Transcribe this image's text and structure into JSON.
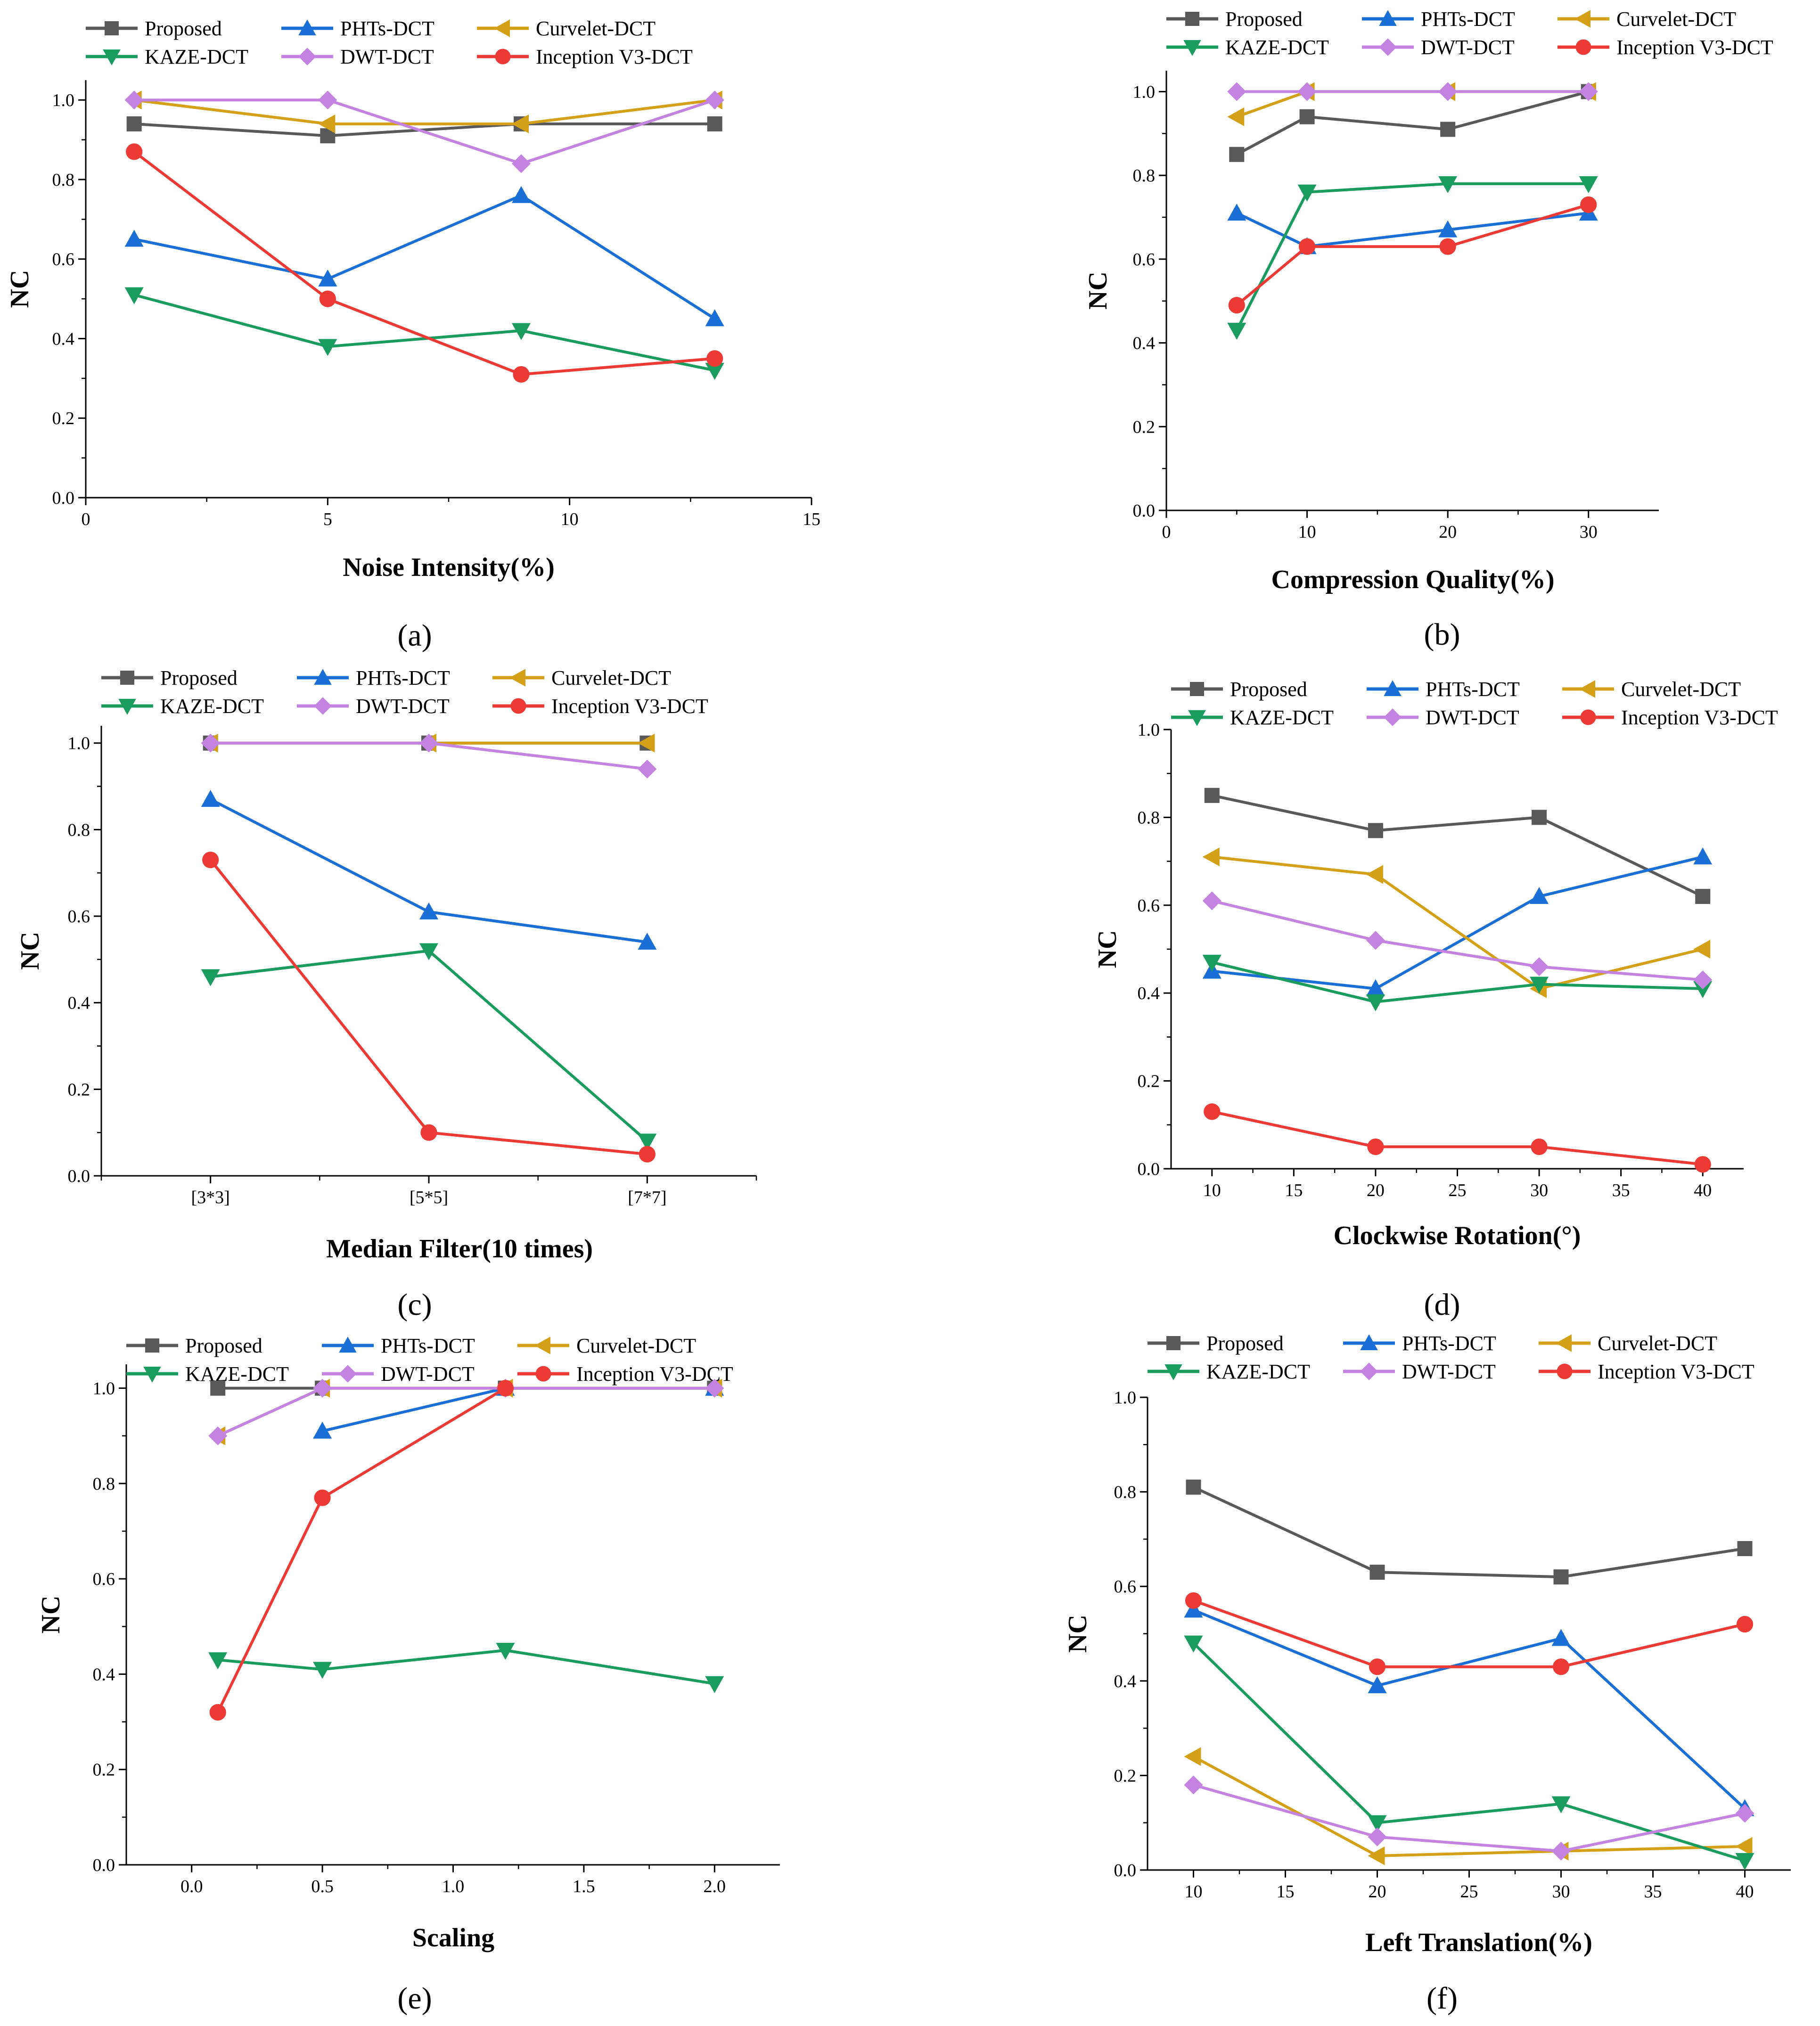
{
  "colors": {
    "Proposed": "#595959",
    "PHTs-DCT": "#1a6fd6",
    "Curvelet-DCT": "#d4a017",
    "KAZE-DCT": "#1a9c5e",
    "DWT-DCT": "#c483e0",
    "Inception V3-DCT": "#ee3a35"
  },
  "markers": {
    "Proposed": "square",
    "PHTs-DCT": "triangle-up",
    "Curvelet-DCT": "triangle-left",
    "KAZE-DCT": "triangle-down",
    "DWT-DCT": "diamond",
    "Inception V3-DCT": "circle"
  },
  "chart_data": [
    {
      "type": "line",
      "caption": "(a)",
      "xlabel": "Noise Intensity(%)",
      "ylabel": "NC",
      "xlim": [
        0,
        15
      ],
      "ylim": [
        0,
        1.05
      ],
      "xticks": [
        0,
        5,
        10,
        15
      ],
      "xtick_labels": [
        "0",
        "5",
        "10",
        "15"
      ],
      "yticks": [
        0,
        0.2,
        0.4,
        0.6,
        0.8,
        1.0
      ],
      "ytick_labels": [
        "0.0",
        "0.2",
        "0.4",
        "0.6",
        "0.8",
        "1.0"
      ],
      "legend": [
        "Proposed",
        "PHTs-DCT",
        "Curvelet-DCT",
        "KAZE-DCT",
        "DWT-DCT",
        "Inception V3-DCT"
      ],
      "series": [
        {
          "name": "Proposed",
          "x": [
            1,
            5,
            9,
            13
          ],
          "y": [
            0.94,
            0.91,
            0.94,
            0.94
          ]
        },
        {
          "name": "PHTs-DCT",
          "x": [
            1,
            5,
            9,
            13
          ],
          "y": [
            0.65,
            0.55,
            0.76,
            0.45
          ]
        },
        {
          "name": "Curvelet-DCT",
          "x": [
            1,
            5,
            9,
            13
          ],
          "y": [
            1.0,
            0.94,
            0.94,
            1.0
          ]
        },
        {
          "name": "KAZE-DCT",
          "x": [
            1,
            5,
            9,
            13
          ],
          "y": [
            0.51,
            0.38,
            0.42,
            0.32
          ]
        },
        {
          "name": "DWT-DCT",
          "x": [
            1,
            5,
            9,
            13
          ],
          "y": [
            1.0,
            1.0,
            0.84,
            1.0
          ]
        },
        {
          "name": "Inception V3-DCT",
          "x": [
            1,
            5,
            9,
            13
          ],
          "y": [
            0.87,
            0.5,
            0.31,
            0.35
          ]
        }
      ]
    },
    {
      "type": "line",
      "caption": "(b)",
      "xlabel": "Compression Quality(%)",
      "ylabel": "NC",
      "xlim": [
        0,
        35
      ],
      "ylim": [
        0,
        1.05
      ],
      "xticks": [
        0,
        10,
        20,
        30
      ],
      "xtick_labels": [
        "0",
        "10",
        "20",
        "30"
      ],
      "yticks": [
        0,
        0.2,
        0.4,
        0.6,
        0.8,
        1.0
      ],
      "ytick_labels": [
        "0.0",
        "0.2",
        "0.4",
        "0.6",
        "0.8",
        "1.0"
      ],
      "legend": [
        "Proposed",
        "PHTs-DCT",
        "Curvelet-DCT",
        "KAZE-DCT",
        "DWT-DCT",
        "Inception V3-DCT"
      ],
      "series": [
        {
          "name": "Proposed",
          "x": [
            5,
            10,
            20,
            30
          ],
          "y": [
            0.85,
            0.94,
            0.91,
            1.0
          ]
        },
        {
          "name": "PHTs-DCT",
          "x": [
            5,
            10,
            20,
            30
          ],
          "y": [
            0.71,
            0.63,
            0.67,
            0.71
          ]
        },
        {
          "name": "Curvelet-DCT",
          "x": [
            5,
            10,
            20,
            30
          ],
          "y": [
            0.94,
            1.0,
            1.0,
            1.0
          ]
        },
        {
          "name": "KAZE-DCT",
          "x": [
            5,
            10,
            20,
            30
          ],
          "y": [
            0.43,
            0.76,
            0.78,
            0.78
          ]
        },
        {
          "name": "DWT-DCT",
          "x": [
            5,
            10,
            20,
            30
          ],
          "y": [
            1.0,
            1.0,
            1.0,
            1.0
          ]
        },
        {
          "name": "Inception V3-DCT",
          "x": [
            5,
            10,
            20,
            30
          ],
          "y": [
            0.49,
            0.63,
            0.63,
            0.73
          ]
        }
      ]
    },
    {
      "type": "line",
      "caption": "(c)",
      "xlabel": "Median Filter(10 times)",
      "ylabel": "NC",
      "xlim": [
        0.5,
        3.5
      ],
      "ylim": [
        0,
        1.04
      ],
      "xticks": [
        1,
        2,
        3
      ],
      "xtick_labels": [
        "[3*3]",
        "[5*5]",
        "[7*7]"
      ],
      "xminor": [
        0.5,
        1.5,
        2.5,
        3.5
      ],
      "yticks": [
        0,
        0.2,
        0.4,
        0.6,
        0.8,
        1.0
      ],
      "ytick_labels": [
        "0.0",
        "0.2",
        "0.4",
        "0.6",
        "0.8",
        "1.0"
      ],
      "legend": [
        "Proposed",
        "PHTs-DCT",
        "Curvelet-DCT",
        "KAZE-DCT",
        "DWT-DCT",
        "Inception V3-DCT"
      ],
      "series": [
        {
          "name": "Proposed",
          "x": [
            1,
            2,
            3
          ],
          "y": [
            1.0,
            1.0,
            1.0
          ]
        },
        {
          "name": "PHTs-DCT",
          "x": [
            1,
            2,
            3
          ],
          "y": [
            0.87,
            0.61,
            0.54
          ]
        },
        {
          "name": "Curvelet-DCT",
          "x": [
            1,
            2,
            3
          ],
          "y": [
            1.0,
            1.0,
            1.0
          ]
        },
        {
          "name": "KAZE-DCT",
          "x": [
            1,
            2,
            3
          ],
          "y": [
            0.46,
            0.52,
            0.08
          ]
        },
        {
          "name": "DWT-DCT",
          "x": [
            1,
            2,
            3
          ],
          "y": [
            1.0,
            1.0,
            0.94
          ]
        },
        {
          "name": "Inception V3-DCT",
          "x": [
            1,
            2,
            3
          ],
          "y": [
            0.73,
            0.1,
            0.05
          ]
        }
      ]
    },
    {
      "type": "line",
      "caption": "(d)",
      "xlabel": "Clockwise Rotation(°)",
      "ylabel": "NC",
      "xlim": [
        7.5,
        42.5
      ],
      "ylim": [
        0,
        1.0
      ],
      "xticks": [
        10,
        15,
        20,
        25,
        30,
        35,
        40
      ],
      "xtick_labels": [
        "10",
        "15",
        "20",
        "25",
        "30",
        "35",
        "40"
      ],
      "yticks": [
        0,
        0.2,
        0.4,
        0.6,
        0.8,
        1.0
      ],
      "ytick_labels": [
        "0.0",
        "0.2",
        "0.4",
        "0.6",
        "0.8",
        "1.0"
      ],
      "legend": [
        "Proposed",
        "PHTs-DCT",
        "Curvelet-DCT",
        "KAZE-DCT",
        "DWT-DCT",
        "Inception V3-DCT"
      ],
      "series": [
        {
          "name": "Proposed",
          "x": [
            10,
            20,
            30,
            40
          ],
          "y": [
            0.85,
            0.77,
            0.8,
            0.62
          ]
        },
        {
          "name": "PHTs-DCT",
          "x": [
            10,
            20,
            30,
            40
          ],
          "y": [
            0.45,
            0.41,
            0.62,
            0.71
          ]
        },
        {
          "name": "Curvelet-DCT",
          "x": [
            10,
            20,
            30,
            40
          ],
          "y": [
            0.71,
            0.67,
            0.41,
            0.5
          ]
        },
        {
          "name": "KAZE-DCT",
          "x": [
            10,
            20,
            30,
            40
          ],
          "y": [
            0.47,
            0.38,
            0.42,
            0.41
          ]
        },
        {
          "name": "DWT-DCT",
          "x": [
            10,
            20,
            30,
            40
          ],
          "y": [
            0.61,
            0.52,
            0.46,
            0.43
          ]
        },
        {
          "name": "Inception V3-DCT",
          "x": [
            10,
            20,
            30,
            40
          ],
          "y": [
            0.13,
            0.05,
            0.05,
            0.01
          ]
        }
      ]
    },
    {
      "type": "line",
      "caption": "(e)",
      "xlabel": "Scaling",
      "ylabel": "NC",
      "xlim": [
        -0.25,
        2.25
      ],
      "ylim": [
        0,
        1.05
      ],
      "xticks": [
        0,
        0.5,
        1.0,
        1.5,
        2.0
      ],
      "xtick_labels": [
        "0.0",
        "0.5",
        "1.0",
        "1.5",
        "2.0"
      ],
      "yticks": [
        0,
        0.2,
        0.4,
        0.6,
        0.8,
        1.0
      ],
      "ytick_labels": [
        "0.0",
        "0.2",
        "0.4",
        "0.6",
        "0.8",
        "1.0"
      ],
      "legend": [
        "Proposed",
        "PHTs-DCT",
        "Curvelet-DCT",
        "KAZE-DCT",
        "DWT-DCT",
        "Inception V3-DCT"
      ],
      "series": [
        {
          "name": "Proposed",
          "x": [
            0.1,
            0.5,
            1.2,
            2.0
          ],
          "y": [
            1.0,
            1.0,
            1.0,
            1.0
          ]
        },
        {
          "name": "PHTs-DCT",
          "x": [
            0.5,
            1.2,
            2.0
          ],
          "y": [
            0.91,
            1.0,
            1.0
          ]
        },
        {
          "name": "Curvelet-DCT",
          "x": [
            0.1,
            0.5,
            1.2,
            2.0
          ],
          "y": [
            0.9,
            1.0,
            1.0,
            1.0
          ]
        },
        {
          "name": "KAZE-DCT",
          "x": [
            0.1,
            0.5,
            1.2,
            2.0
          ],
          "y": [
            0.43,
            0.41,
            0.45,
            0.38
          ]
        },
        {
          "name": "DWT-DCT",
          "x": [
            0.1,
            0.5,
            1.2,
            2.0
          ],
          "y": [
            0.9,
            1.0,
            1.0,
            1.0
          ]
        },
        {
          "name": "Inception V3-DCT",
          "x": [
            0.1,
            0.5,
            1.2
          ],
          "y": [
            0.32,
            0.77,
            1.0
          ]
        }
      ]
    },
    {
      "type": "line",
      "caption": "(f)",
      "xlabel": "Left Translation(%)",
      "ylabel": "NC",
      "xlim": [
        7.5,
        42.5
      ],
      "ylim": [
        0,
        1.0
      ],
      "xticks": [
        10,
        15,
        20,
        25,
        30,
        35,
        40
      ],
      "xtick_labels": [
        "10",
        "15",
        "20",
        "25",
        "30",
        "35",
        "40"
      ],
      "yticks": [
        0,
        0.2,
        0.4,
        0.6,
        0.8,
        1.0
      ],
      "ytick_labels": [
        "0.0",
        "0.2",
        "0.4",
        "0.6",
        "0.8",
        "1.0"
      ],
      "legend": [
        "Proposed",
        "PHTs-DCT",
        "Curvelet-DCT",
        "KAZE-DCT",
        "DWT-DCT",
        "Inception V3-DCT"
      ],
      "series": [
        {
          "name": "Proposed",
          "x": [
            10,
            20,
            30,
            40
          ],
          "y": [
            0.81,
            0.63,
            0.62,
            0.68
          ]
        },
        {
          "name": "PHTs-DCT",
          "x": [
            10,
            20,
            30,
            40
          ],
          "y": [
            0.55,
            0.39,
            0.49,
            0.13
          ]
        },
        {
          "name": "Curvelet-DCT",
          "x": [
            10,
            20,
            30,
            40
          ],
          "y": [
            0.24,
            0.03,
            0.04,
            0.05
          ]
        },
        {
          "name": "KAZE-DCT",
          "x": [
            10,
            20,
            30,
            40
          ],
          "y": [
            0.48,
            0.1,
            0.14,
            0.02
          ]
        },
        {
          "name": "DWT-DCT",
          "x": [
            10,
            20,
            30,
            40
          ],
          "y": [
            0.18,
            0.07,
            0.04,
            0.12
          ]
        },
        {
          "name": "Inception V3-DCT",
          "x": [
            10,
            20,
            30,
            40
          ],
          "y": [
            0.57,
            0.43,
            0.43,
            0.52
          ]
        }
      ]
    }
  ]
}
